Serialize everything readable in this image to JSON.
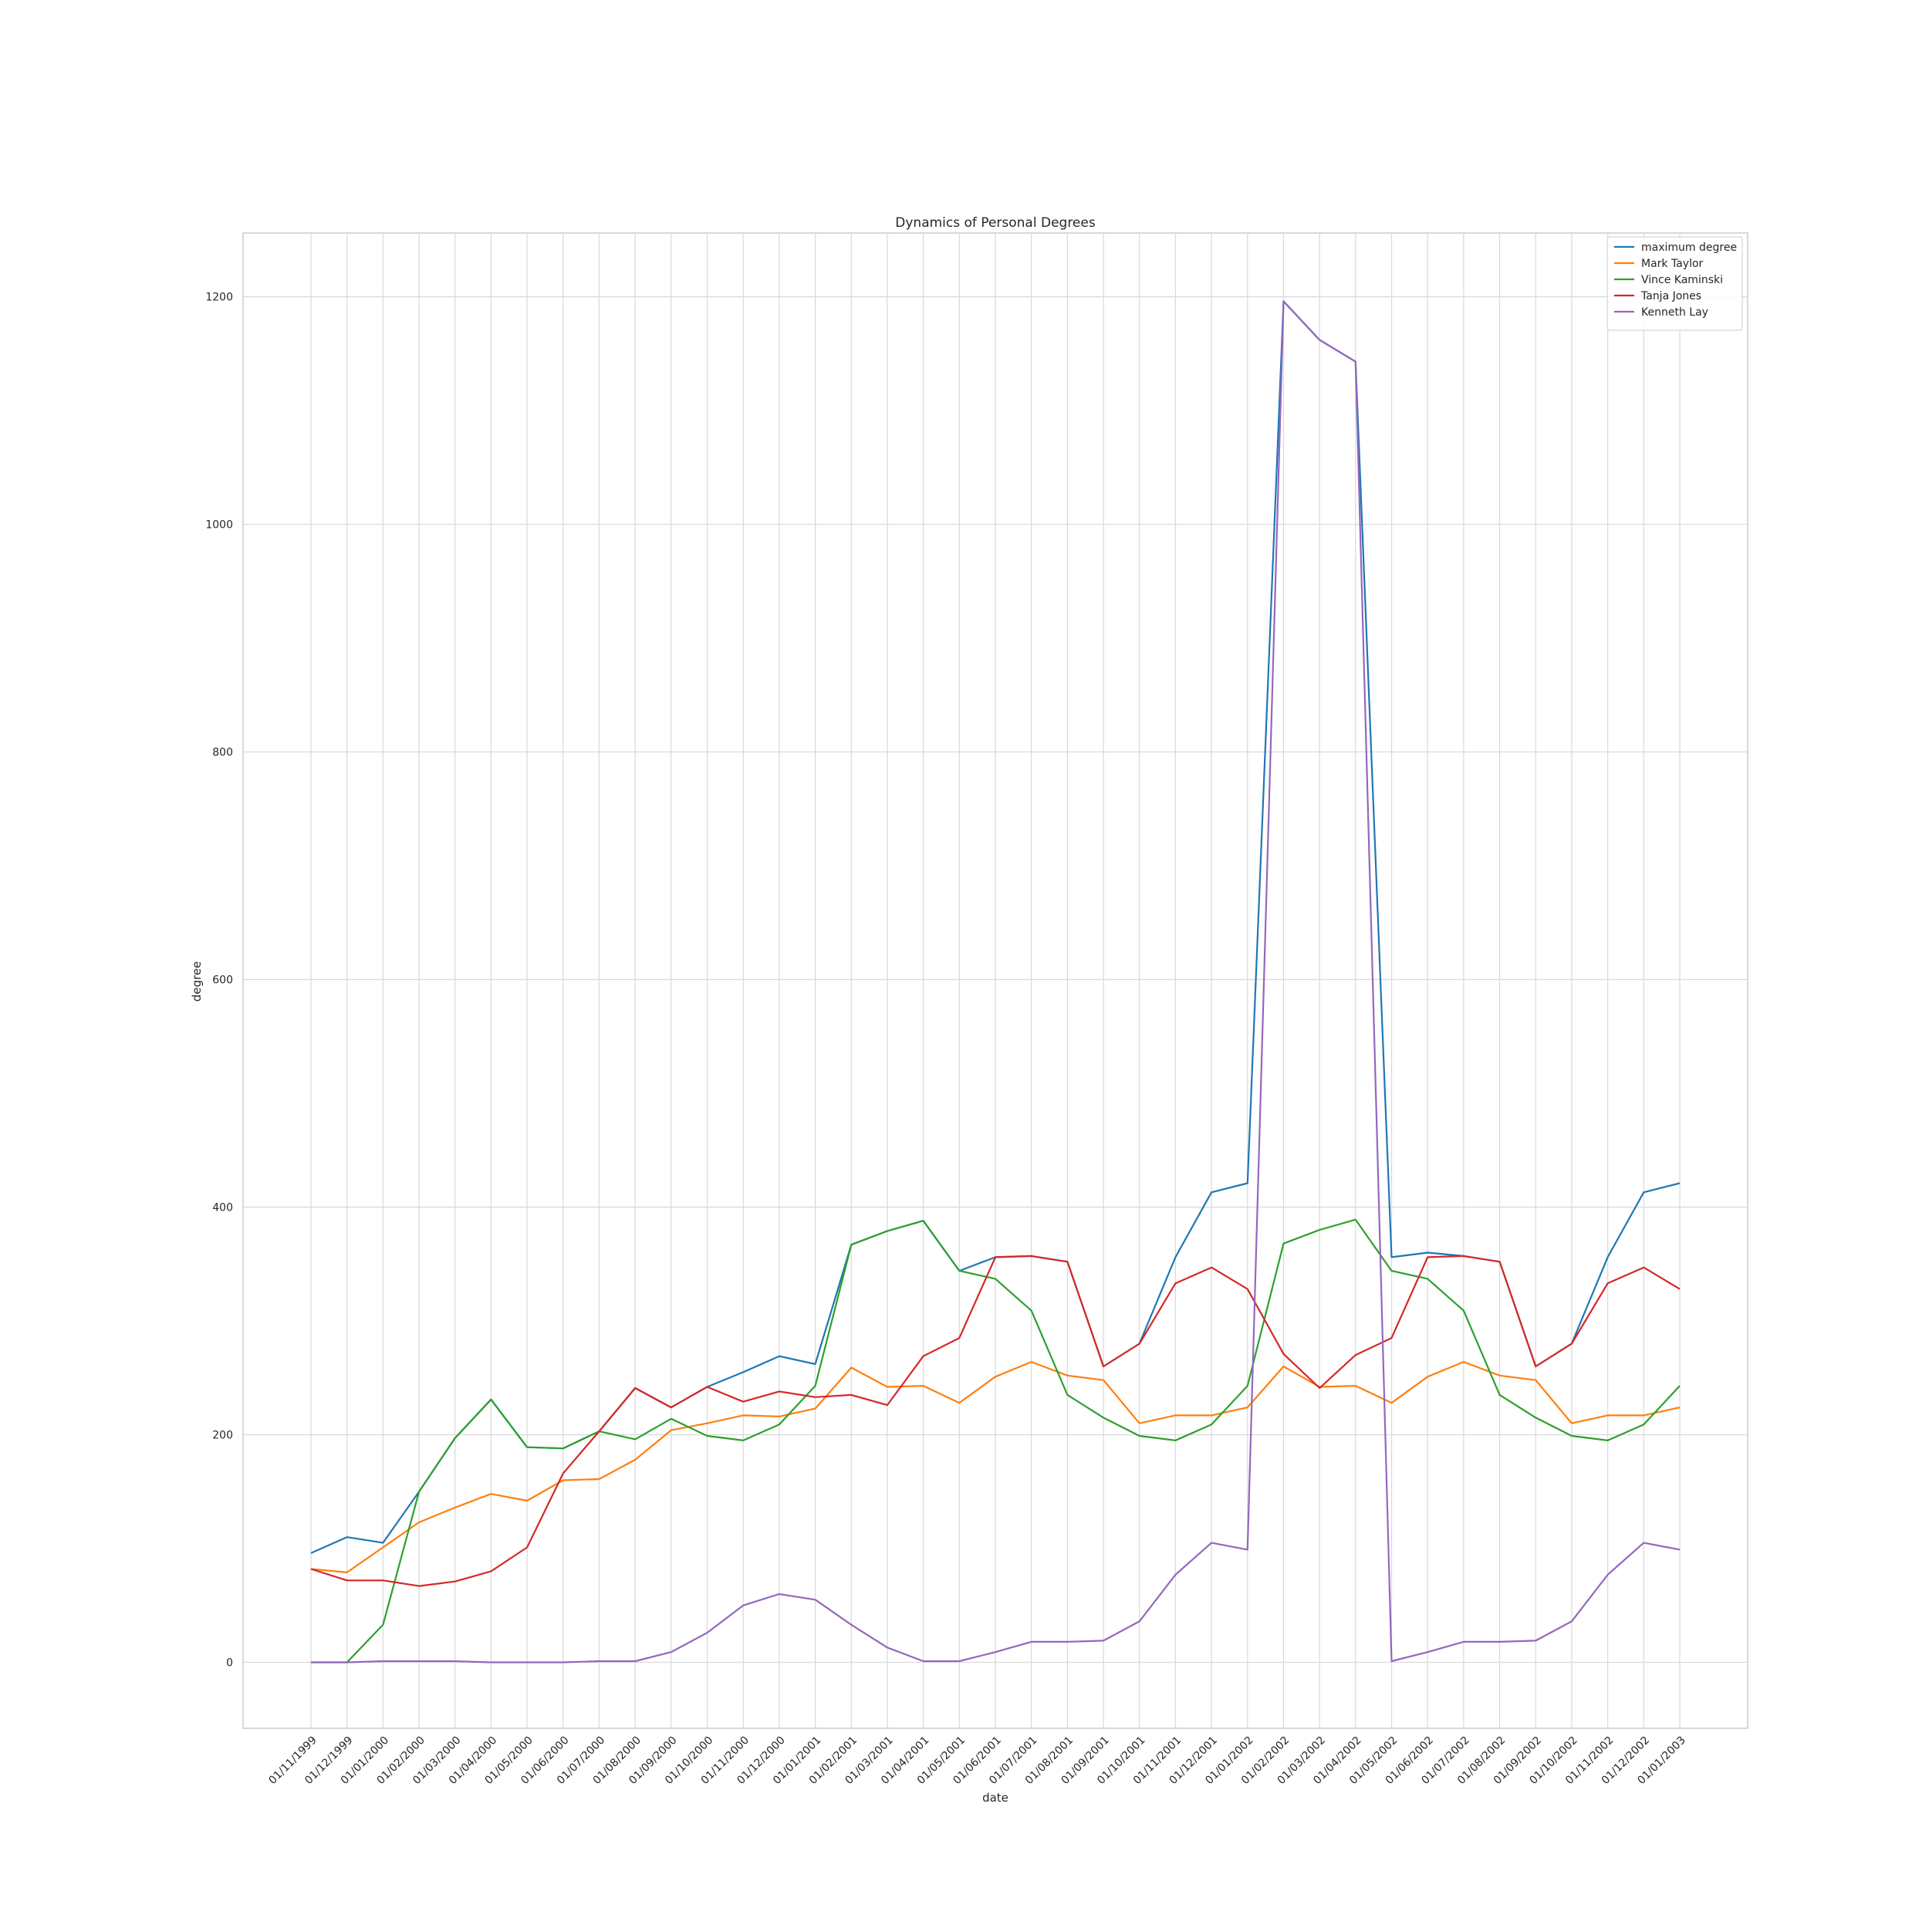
{
  "chart_data": {
    "type": "line",
    "title": "Dynamics of Personal Degrees",
    "xlabel": "date",
    "ylabel": "degree",
    "ylim": [
      -58,
      1256
    ],
    "yticks": [
      0,
      200,
      400,
      600,
      800,
      1000,
      1200
    ],
    "grid": true,
    "legend_position": "top-right",
    "categories": [
      "01/11/1999",
      "01/12/1999",
      "01/01/2000",
      "01/02/2000",
      "01/03/2000",
      "01/04/2000",
      "01/05/2000",
      "01/06/2000",
      "01/07/2000",
      "01/08/2000",
      "01/09/2000",
      "01/10/2000",
      "01/11/2000",
      "01/12/2000",
      "01/01/2001",
      "01/02/2001",
      "01/03/2001",
      "01/04/2001",
      "01/05/2001",
      "01/06/2001",
      "01/07/2001",
      "01/08/2001",
      "01/09/2001",
      "01/10/2001",
      "01/11/2001",
      "01/12/2001",
      "01/01/2002",
      "01/02/2002",
      "01/03/2002",
      "01/04/2002",
      "01/05/2002",
      "01/06/2002",
      "01/07/2002",
      "01/08/2002",
      "01/09/2002",
      "01/10/2002",
      "01/11/2002",
      "01/12/2002",
      "01/01/2003"
    ],
    "series": [
      {
        "name": "maximum degree",
        "color": "#1f77b4",
        "values": [
          96,
          110,
          105,
          150,
          197,
          231,
          189,
          188,
          203,
          241,
          224,
          242,
          255,
          269,
          262,
          367,
          379,
          388,
          344,
          356,
          357,
          352,
          260,
          280,
          356,
          413,
          421,
          1196,
          1162,
          1143,
          356,
          360,
          357,
          352,
          260,
          280,
          356,
          413,
          421
        ]
      },
      {
        "name": "Mark Taylor",
        "color": "#ff7f0e",
        "values": [
          82,
          79,
          101,
          123,
          136,
          148,
          142,
          160,
          161,
          178,
          204,
          210,
          217,
          216,
          223,
          259,
          242,
          243,
          228,
          251,
          264,
          252,
          248,
          210,
          217,
          217,
          224,
          260,
          242,
          243,
          228,
          251,
          264,
          252,
          248,
          210,
          217,
          217,
          224
        ]
      },
      {
        "name": "Vince Kaminski",
        "color": "#2ca02c",
        "values": [
          0,
          0,
          33,
          150,
          197,
          231,
          189,
          188,
          203,
          196,
          214,
          199,
          195,
          209,
          243,
          367,
          379,
          388,
          344,
          337,
          309,
          235,
          215,
          199,
          195,
          209,
          243,
          368,
          380,
          389,
          344,
          337,
          309,
          235,
          215,
          199,
          195,
          209,
          243
        ]
      },
      {
        "name": "Tanja Jones",
        "color": "#d62728",
        "values": [
          82,
          72,
          72,
          67,
          71,
          80,
          101,
          166,
          203,
          241,
          224,
          242,
          229,
          238,
          233,
          235,
          226,
          269,
          285,
          356,
          357,
          352,
          260,
          280,
          333,
          347,
          328,
          271,
          241,
          270,
          285,
          356,
          357,
          352,
          260,
          280,
          333,
          347,
          328
        ]
      },
      {
        "name": "Kenneth Lay",
        "color": "#9467bd",
        "values": [
          0,
          0,
          1,
          1,
          1,
          0,
          0,
          0,
          1,
          1,
          9,
          26,
          50,
          60,
          55,
          33,
          13,
          1,
          1,
          9,
          18,
          18,
          19,
          36,
          77,
          105,
          99,
          1196,
          1162,
          1143,
          1,
          9,
          18,
          18,
          19,
          36,
          77,
          105,
          99
        ]
      }
    ]
  }
}
